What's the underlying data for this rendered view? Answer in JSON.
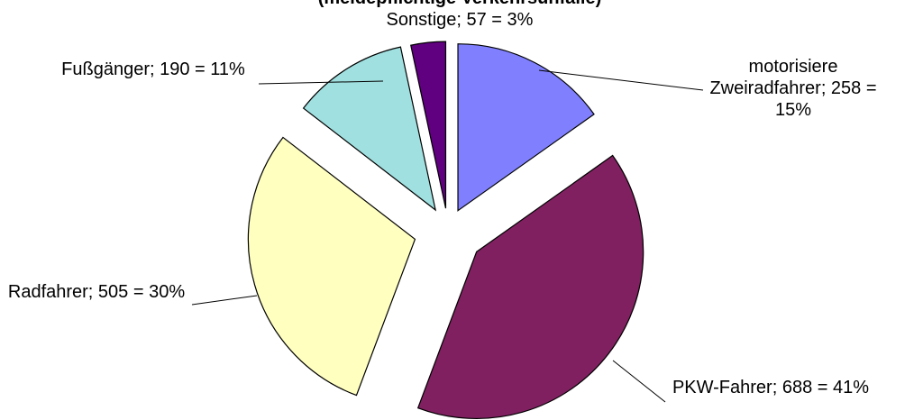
{
  "chart_data": {
    "type": "pie",
    "title": "(meldepflichtige Verkehrsunfälle)",
    "values": [
      258,
      688,
      505,
      190,
      57
    ],
    "value_labels": [
      "motorisiere Zweiradfahrer; 258 = 15%",
      "PKW-Fahrer; 688 = 41%",
      "Radfahrer; 505 = 30%",
      "Fußgänger; 190 = 11%",
      "Sonstige; 57 = 3%"
    ],
    "colors": [
      "#8080ff",
      "#802060",
      "#ffffc0",
      "#a0e0e0",
      "#600080"
    ]
  }
}
